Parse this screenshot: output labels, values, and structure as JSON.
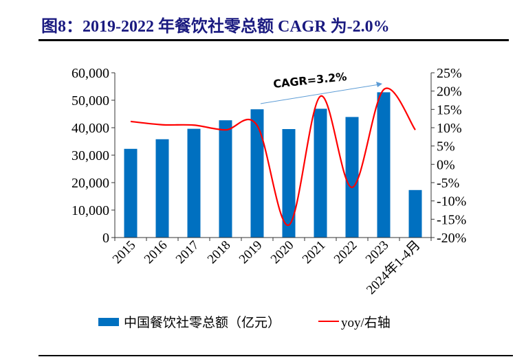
{
  "title": "图8：2019-2022 年餐饮社零总额 CAGR 为-2.0%",
  "chart_data": {
    "type": "bar+line",
    "title": "图8：2019-2022 年餐饮社零总额 CAGR 为-2.0%",
    "categories": [
      "2015",
      "2016",
      "2017",
      "2018",
      "2019",
      "2020",
      "2021",
      "2022",
      "2023",
      "2024年1-4月"
    ],
    "series": [
      {
        "name": "中国餐饮社零总额（亿元）",
        "type": "bar",
        "axis": "left",
        "color": "#0070C0",
        "values": [
          32300,
          35800,
          39600,
          42700,
          46700,
          39500,
          46900,
          43900,
          52900,
          17300
        ]
      },
      {
        "name": "yoy/右轴",
        "type": "line",
        "axis": "right",
        "color": "#FF0000",
        "smooth": true,
        "values": [
          11.7,
          10.8,
          10.7,
          9.4,
          10.6,
          -16.6,
          18.6,
          -6.3,
          20.4,
          9.4
        ]
      }
    ],
    "left_axis": {
      "ylim": [
        0,
        60000
      ],
      "ticks": [
        0,
        10000,
        20000,
        30000,
        40000,
        50000,
        60000
      ],
      "tick_labels": [
        "0",
        "10,000",
        "20,000",
        "30,000",
        "40,000",
        "50,000",
        "60,000"
      ]
    },
    "right_axis": {
      "ylim": [
        -20,
        25
      ],
      "ticks": [
        -20,
        -15,
        -10,
        -5,
        0,
        5,
        10,
        15,
        20,
        25
      ],
      "tick_labels": [
        "-20%",
        "-15%",
        "-10%",
        "-5%",
        "0%",
        "5%",
        "10%",
        "15%",
        "20%",
        "25%"
      ]
    },
    "annotation": {
      "text": "CAGR=3.2%",
      "arrow_from": "2019",
      "arrow_to": "2023",
      "color": "#5B9BD5"
    },
    "grid": false,
    "legend_position": "bottom"
  }
}
